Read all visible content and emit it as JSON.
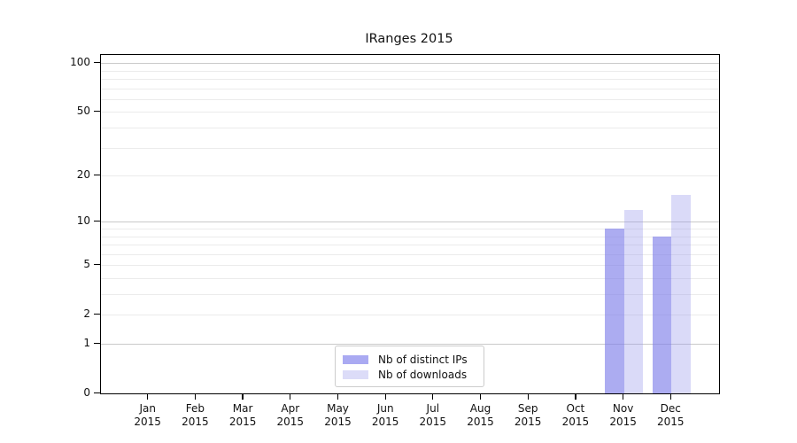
{
  "chart_data": {
    "type": "bar",
    "title": "IRanges 2015",
    "categories": [
      "Jan",
      "Feb",
      "Mar",
      "Apr",
      "May",
      "Jun",
      "Jul",
      "Aug",
      "Sep",
      "Oct",
      "Nov",
      "Dec"
    ],
    "category_year_label": "2015",
    "series": [
      {
        "name": "Nb of distinct IPs",
        "values": [
          0,
          0,
          0,
          0,
          0,
          0,
          0,
          0,
          0,
          0,
          9,
          8
        ],
        "fill": "rgba(127,127,234,0.65)",
        "swatch": "#aaaaf2"
      },
      {
        "name": "Nb of downloads",
        "values": [
          0,
          0,
          0,
          0,
          0,
          0,
          0,
          0,
          0,
          0,
          12,
          15
        ],
        "fill": "rgba(149,149,235,0.35)",
        "swatch": "#dcdcf8"
      }
    ],
    "yscale": "log1p",
    "ylim": [
      0,
      112
    ],
    "yticks": [
      0,
      1,
      2,
      5,
      10,
      20,
      50,
      100
    ],
    "grid": {
      "major": [
        1,
        10,
        100
      ],
      "minor": [
        2,
        3,
        4,
        5,
        6,
        7,
        8,
        9,
        20,
        30,
        40,
        50,
        60,
        70,
        80,
        90
      ],
      "major_color": "#c9c9c9",
      "minor_color": "#ebebeb"
    },
    "legend_position": "lower center",
    "axis_color": "#000000",
    "background_color": "#ffffff"
  }
}
